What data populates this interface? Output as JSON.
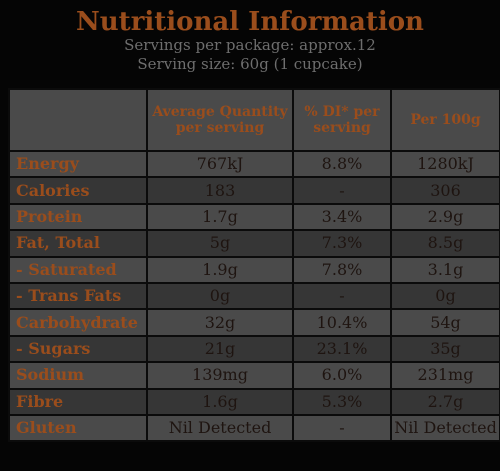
{
  "header": {
    "title": "Nutritional Information",
    "servings": "Servings per package: approx.12",
    "serving_size": "Serving size: 60g (1 cupcake)"
  },
  "columns": [
    "",
    "Average Quantity per serving",
    "% DI* per serving",
    "Per 100g"
  ],
  "rows": [
    {
      "label": "Energy",
      "avg": "767kJ",
      "di": "8.8%",
      "per100": "1280kJ"
    },
    {
      "label": "Calories",
      "avg": "183",
      "di": "-",
      "per100": "306"
    },
    {
      "label": "Protein",
      "avg": "1.7g",
      "di": "3.4%",
      "per100": "2.9g"
    },
    {
      "label": "Fat, Total",
      "avg": "5g",
      "di": "7.3%",
      "per100": "8.5g"
    },
    {
      "label": "- Saturated",
      "avg": "1.9g",
      "di": "7.8%",
      "per100": "3.1g"
    },
    {
      "label": "- Trans Fats",
      "avg": "0g",
      "di": "-",
      "per100": "0g"
    },
    {
      "label": "Carbohydrate",
      "avg": "32g",
      "di": "10.4%",
      "per100": "54g"
    },
    {
      "label": "- Sugars",
      "avg": "21g",
      "di": "23.1%",
      "per100": "35g"
    },
    {
      "label": "Sodium",
      "avg": "139mg",
      "di": "6.0%",
      "per100": "231mg"
    },
    {
      "label": "Fibre",
      "avg": "1.6g",
      "di": "5.3%",
      "per100": "2.7g"
    },
    {
      "label": "Gluten",
      "avg": "Nil Detected",
      "di": "-",
      "per100": "Nil Detected"
    }
  ]
}
